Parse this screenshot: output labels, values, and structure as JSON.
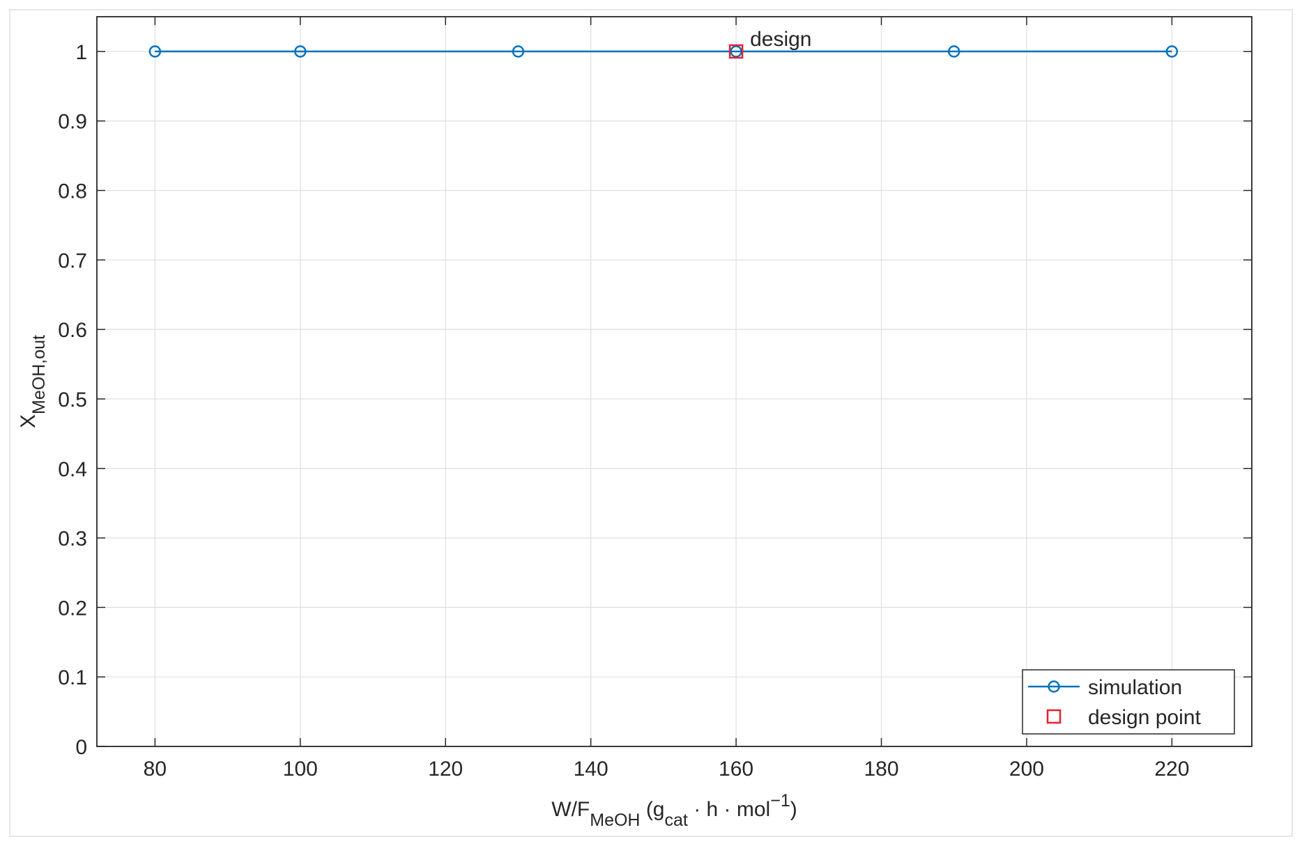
{
  "chart_data": {
    "type": "line",
    "xlabel_parts": [
      {
        "text": "W/F"
      },
      {
        "text": "MeOH",
        "shift": "sub"
      },
      {
        "text": "  (g"
      },
      {
        "text": "cat",
        "shift": "sub"
      },
      {
        "text": " ·  h ·  mol"
      },
      {
        "text": "−1",
        "shift": "super"
      },
      {
        "text": ")"
      }
    ],
    "ylabel_parts": [
      {
        "text": "X"
      },
      {
        "text": "MeOH,out",
        "shift": "sub"
      }
    ],
    "xlim": [
      72,
      231
    ],
    "ylim": [
      0,
      1.05
    ],
    "xticks": [
      80,
      100,
      120,
      140,
      160,
      180,
      200,
      220
    ],
    "yticks": [
      0,
      0.1,
      0.2,
      0.3,
      0.4,
      0.5,
      0.6,
      0.7,
      0.8,
      0.9,
      1
    ],
    "grid": true,
    "legend": "lower right",
    "series": [
      {
        "name": "simulation",
        "color": "#0072bd",
        "marker": "circle",
        "line": true,
        "x": [
          80,
          100,
          130,
          160,
          190,
          220
        ],
        "values": [
          1,
          1,
          1,
          1,
          1,
          1
        ]
      },
      {
        "name": "design point",
        "color": "#e8202a",
        "marker": "square",
        "line": false,
        "x": [
          160
        ],
        "values": [
          1
        ]
      }
    ],
    "annotations": [
      {
        "text": "design",
        "x": 160,
        "y": 1
      }
    ]
  }
}
